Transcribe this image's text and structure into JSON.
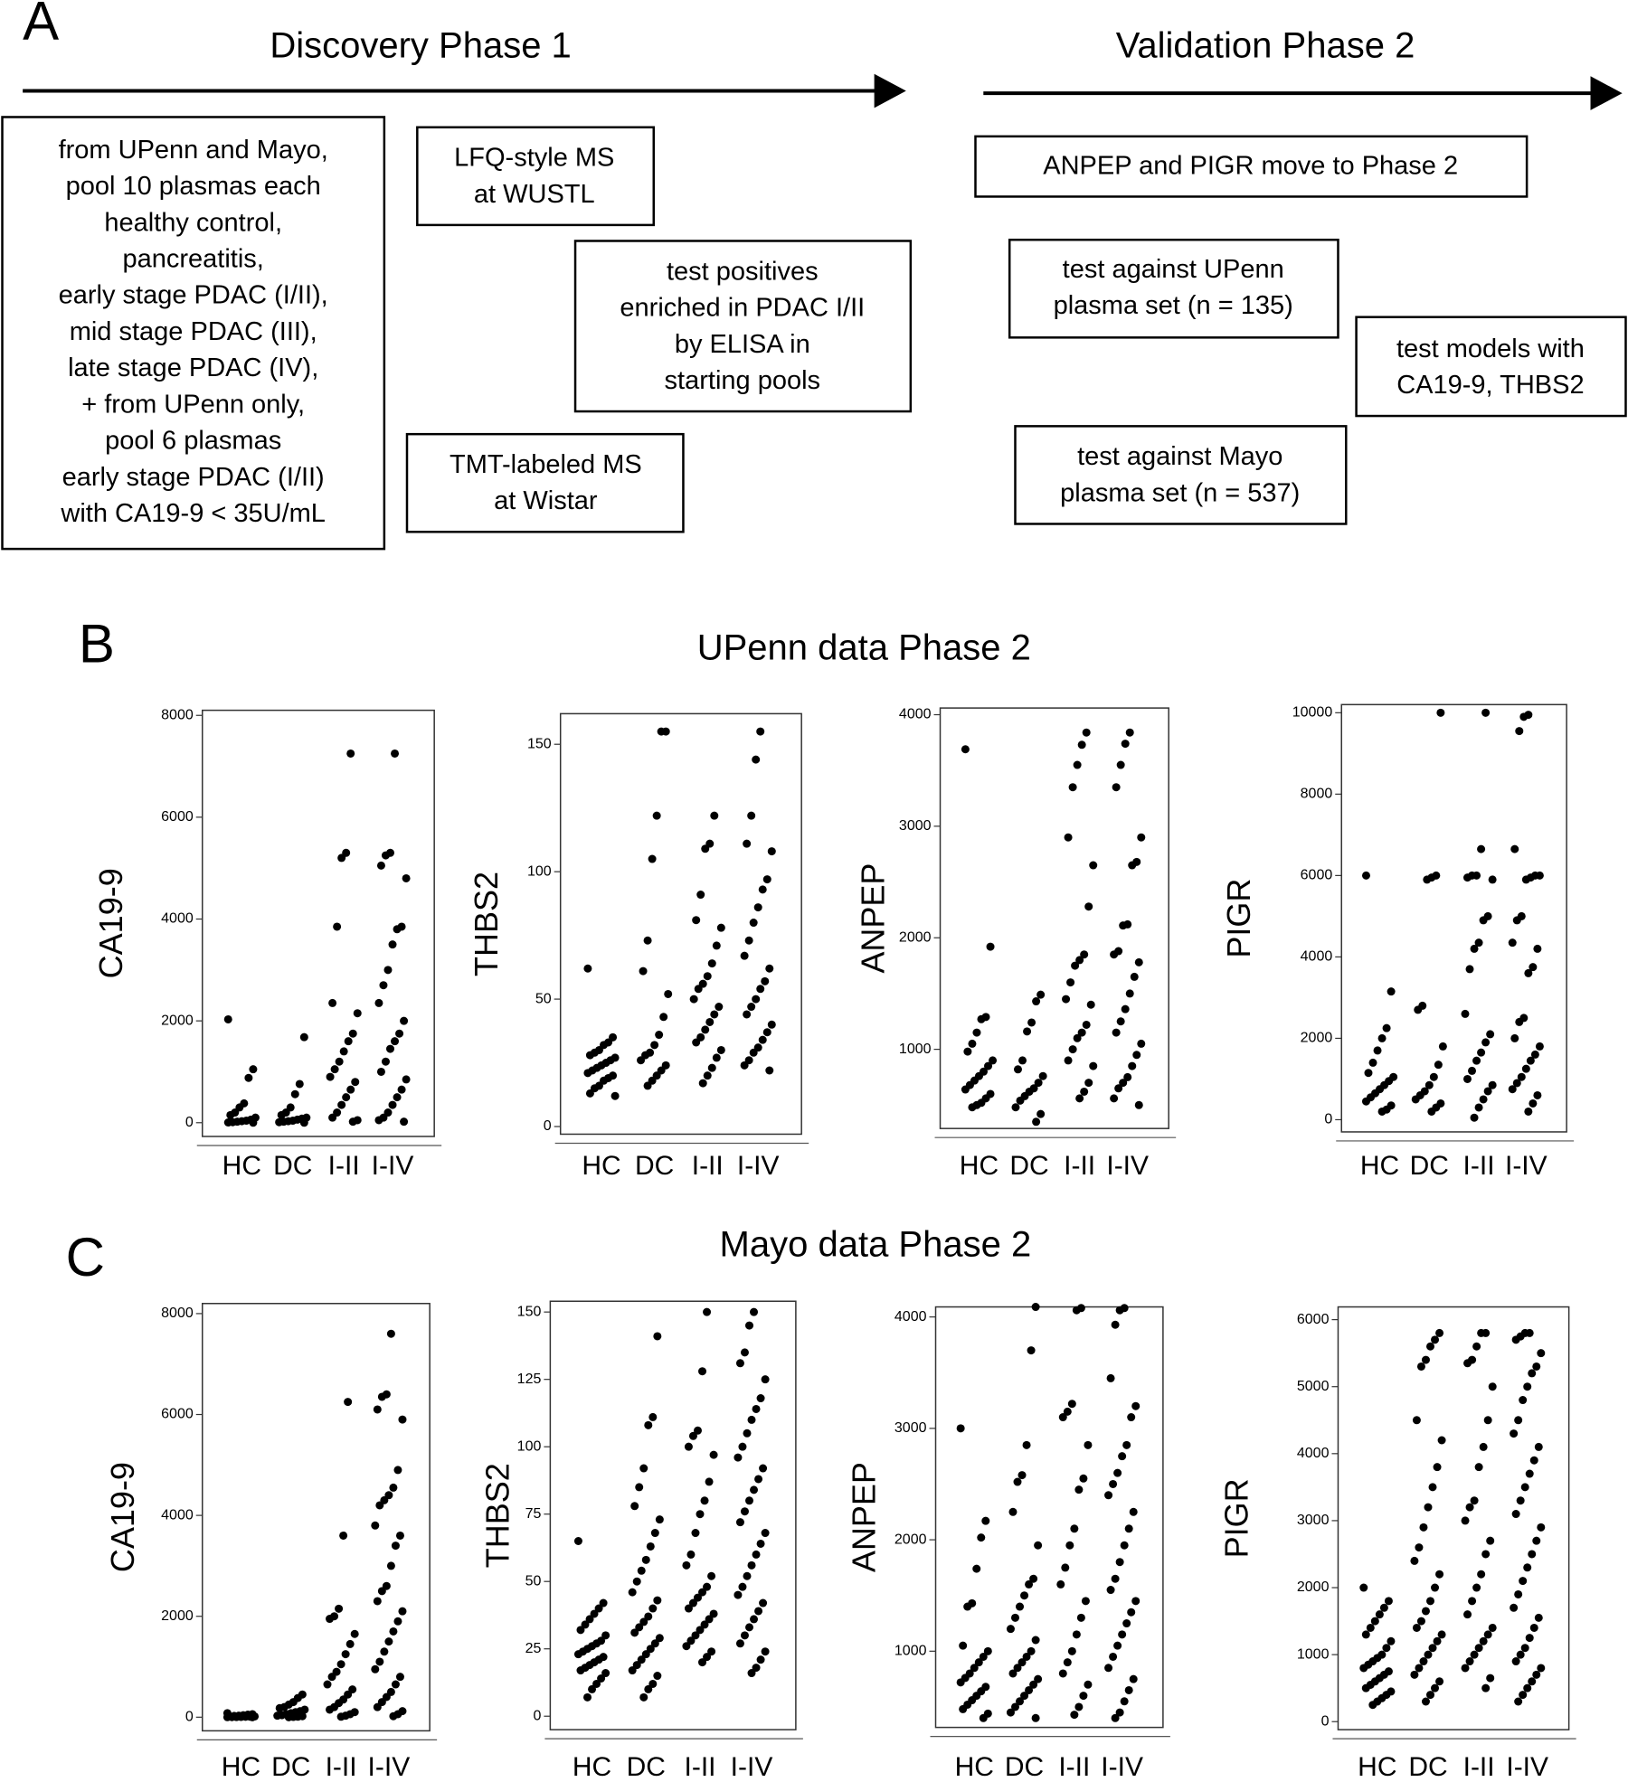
{
  "panel_a": {
    "label": "A",
    "phase1_title": "Discovery Phase 1",
    "phase2_title": "Validation Phase 2",
    "boxes": [
      {
        "lines": [
          "from UPenn and Mayo,",
          "pool 10 plasmas each",
          "healthy control,",
          "pancreatitis,",
          "early stage PDAC (I/II),",
          "mid stage PDAC (III),",
          "late stage PDAC (IV),",
          "+ from UPenn only,",
          "pool 6 plasmas",
          "early stage PDAC (I/II)",
          "with CA19-9 < 35U/mL"
        ]
      },
      {
        "lines": [
          "LFQ-style MS",
          "at WUSTL"
        ]
      },
      {
        "lines": [
          "test positives",
          "enriched in PDAC I/II",
          "by ELISA in",
          "starting pools"
        ]
      },
      {
        "lines": [
          "TMT-labeled MS",
          "at Wistar"
        ]
      },
      {
        "lines": [
          "ANPEP and PIGR move to Phase 2"
        ]
      },
      {
        "lines": [
          "test against UPenn",
          "plasma set (n = 135)"
        ]
      },
      {
        "lines": [
          "test models with",
          "CA19-9, THBS2"
        ]
      },
      {
        "lines": [
          "test against Mayo",
          "plasma set (n = 537)"
        ]
      }
    ]
  },
  "panel_b": {
    "label": "B",
    "title": "UPenn data Phase 2"
  },
  "panel_c": {
    "label": "C",
    "title": "Mayo data Phase 2"
  },
  "chart_data": [
    {
      "type": "strip",
      "ylabel": "CA19-9",
      "categories": [
        "HC",
        "DC",
        "I-II",
        "I-IV"
      ],
      "color": "#000000",
      "ylim": [
        -270,
        8100
      ],
      "yticks": [
        0,
        2000,
        4000,
        6000,
        8000
      ],
      "values": [
        [
          2030,
          1050,
          880,
          380,
          300,
          200,
          150,
          100,
          60,
          40,
          30,
          20,
          10,
          5,
          0
        ],
        [
          1680,
          760,
          560,
          300,
          200,
          150,
          100,
          80,
          60,
          40,
          30,
          20,
          10,
          0
        ],
        [
          7250,
          5300,
          5200,
          3850,
          2350,
          2150,
          1750,
          1600,
          1400,
          1200,
          1050,
          900,
          800,
          650,
          500,
          350,
          200,
          100,
          50,
          20
        ],
        [
          7250,
          5300,
          5250,
          5050,
          4800,
          3850,
          3800,
          3500,
          3000,
          2700,
          2350,
          2000,
          1750,
          1600,
          1450,
          1200,
          1000,
          850,
          650,
          500,
          350,
          200,
          100,
          50,
          20
        ]
      ]
    },
    {
      "type": "strip",
      "ylabel": "THBS2",
      "categories": [
        "HC",
        "DC",
        "I-II",
        "I-IV"
      ],
      "color": "#000000",
      "ylim": [
        -3,
        162
      ],
      "yticks": [
        0,
        50,
        100,
        150
      ],
      "values": [
        [
          62,
          35,
          33,
          32,
          30,
          29,
          28,
          27,
          26,
          25,
          24,
          23,
          22,
          21,
          20,
          19,
          18,
          16,
          15,
          13,
          12
        ],
        [
          155,
          155,
          122,
          105,
          73,
          61,
          52,
          43,
          36,
          32,
          29,
          28,
          26,
          24,
          22,
          20,
          18,
          16
        ],
        [
          122,
          111,
          109,
          91,
          81,
          78,
          71,
          64,
          59,
          56,
          54,
          50,
          47,
          44,
          41,
          38,
          35,
          33,
          30,
          27,
          23,
          20,
          17
        ],
        [
          155,
          144,
          122,
          111,
          108,
          97,
          93,
          86,
          80,
          73,
          67,
          62,
          57,
          54,
          50,
          47,
          44,
          40,
          37,
          34,
          31,
          29,
          26,
          24,
          22
        ]
      ]
    },
    {
      "type": "strip",
      "ylabel": "ANPEP",
      "categories": [
        "HC",
        "DC",
        "I-II",
        "I-IV"
      ],
      "color": "#000000",
      "ylim": [
        290,
        4060
      ],
      "yticks": [
        1000,
        2000,
        3000,
        4000
      ],
      "values": [
        [
          3690,
          1920,
          1290,
          1270,
          1150,
          1050,
          980,
          900,
          850,
          800,
          760,
          720,
          680,
          640,
          600,
          560,
          520,
          500,
          480
        ],
        [
          1490,
          1430,
          1240,
          1160,
          900,
          820,
          760,
          700,
          650,
          620,
          580,
          540,
          480,
          420,
          350
        ],
        [
          3840,
          3730,
          3550,
          3350,
          2900,
          2650,
          2280,
          1850,
          1800,
          1750,
          1600,
          1450,
          1400,
          1220,
          1150,
          1100,
          1000,
          900,
          850,
          700,
          620,
          560
        ],
        [
          3840,
          3740,
          3550,
          3350,
          2900,
          2680,
          2650,
          2120,
          2110,
          1880,
          1850,
          1780,
          1650,
          1500,
          1360,
          1250,
          1150,
          1050,
          950,
          850,
          750,
          700,
          650,
          560,
          500
        ]
      ]
    },
    {
      "type": "strip",
      "ylabel": "PIGR",
      "categories": [
        "HC",
        "DC",
        "I-II",
        "I-IV"
      ],
      "color": "#000000",
      "ylim": [
        -300,
        10200
      ],
      "yticks": [
        0,
        2000,
        4000,
        6000,
        8000,
        10000
      ],
      "values": [
        [
          6000,
          3150,
          2250,
          2000,
          1700,
          1400,
          1150,
          1050,
          950,
          850,
          750,
          650,
          550,
          450,
          350,
          250,
          200
        ],
        [
          10000,
          6000,
          5950,
          5900,
          2800,
          2700,
          1800,
          1350,
          1050,
          850,
          700,
          600,
          500,
          400,
          300,
          200
        ],
        [
          10000,
          6650,
          6000,
          6000,
          5950,
          5900,
          5000,
          4900,
          4350,
          4200,
          3700,
          2600,
          2100,
          1900,
          1650,
          1450,
          1200,
          1000,
          850,
          700,
          500,
          300,
          50
        ],
        [
          9950,
          9900,
          9550,
          6650,
          6000,
          6000,
          5950,
          5900,
          5000,
          4900,
          4350,
          4200,
          3750,
          3600,
          2500,
          2400,
          2000,
          1800,
          1600,
          1450,
          1250,
          1050,
          900,
          750,
          600,
          400,
          200
        ]
      ]
    },
    {
      "type": "strip",
      "ylabel": "CA19-9",
      "categories": [
        "HC",
        "DC",
        "I-II",
        "I-IV"
      ],
      "color": "#000000",
      "ylim": [
        -270,
        8200
      ],
      "yticks": [
        0,
        2000,
        4000,
        6000,
        8000
      ],
      "values": [
        [
          80,
          60,
          50,
          40,
          30,
          25,
          20,
          15,
          10,
          8,
          5,
          3,
          2,
          1,
          0
        ],
        [
          450,
          380,
          300,
          250,
          200,
          180,
          150,
          120,
          100,
          80,
          60,
          40,
          30,
          20,
          10,
          5,
          0
        ],
        [
          6250,
          3600,
          2150,
          2000,
          1950,
          1650,
          1450,
          1250,
          1050,
          900,
          800,
          650,
          550,
          450,
          350,
          280,
          200,
          150,
          100,
          60,
          30,
          10
        ],
        [
          7600,
          6400,
          6350,
          6100,
          5900,
          4900,
          4550,
          4400,
          4300,
          4200,
          3800,
          3600,
          3400,
          3000,
          2600,
          2500,
          2300,
          2100,
          1900,
          1700,
          1500,
          1300,
          1100,
          950,
          800,
          650,
          500,
          400,
          300,
          200,
          120,
          60,
          20
        ]
      ]
    },
    {
      "type": "strip",
      "ylabel": "THBS2",
      "categories": [
        "HC",
        "DC",
        "I-II",
        "I-IV"
      ],
      "color": "#000000",
      "ylim": [
        -5,
        154
      ],
      "yticks": [
        0,
        25,
        50,
        75,
        100,
        125,
        150
      ],
      "values": [
        [
          65,
          42,
          40,
          38,
          36,
          34,
          32,
          30,
          28,
          27,
          26,
          25,
          24,
          23,
          22,
          21,
          20,
          19,
          18,
          17,
          16,
          14,
          12,
          10,
          7
        ],
        [
          141,
          111,
          108,
          92,
          85,
          78,
          73,
          68,
          63,
          58,
          54,
          50,
          46,
          43,
          40,
          37,
          35,
          33,
          31,
          29,
          27,
          25,
          23,
          21,
          19,
          17,
          15,
          12,
          10,
          7
        ],
        [
          150,
          128,
          106,
          104,
          100,
          97,
          87,
          80,
          75,
          68,
          60,
          56,
          52,
          48,
          46,
          44,
          42,
          40,
          38,
          36,
          34,
          32,
          30,
          28,
          26,
          24,
          22,
          20
        ],
        [
          150,
          145,
          135,
          131,
          125,
          118,
          114,
          110,
          105,
          100,
          96,
          92,
          88,
          84,
          80,
          76,
          72,
          68,
          64,
          60,
          56,
          52,
          48,
          45,
          42,
          39,
          36,
          33,
          30,
          27,
          24,
          21,
          18,
          16
        ]
      ]
    },
    {
      "type": "strip",
      "ylabel": "ANPEP",
      "categories": [
        "HC",
        "DC",
        "I-II",
        "I-IV"
      ],
      "color": "#000000",
      "ylim": [
        316,
        4090
      ],
      "yticks": [
        1000,
        2000,
        3000,
        4000
      ],
      "values": [
        [
          3000,
          2170,
          2020,
          1740,
          1430,
          1400,
          1050,
          1000,
          950,
          900,
          850,
          800,
          760,
          720,
          680,
          640,
          600,
          560,
          520,
          480,
          440,
          400
        ],
        [
          4090,
          3700,
          2850,
          2580,
          2520,
          2250,
          1950,
          1650,
          1600,
          1500,
          1400,
          1300,
          1200,
          1100,
          1000,
          950,
          900,
          850,
          800,
          750,
          700,
          650,
          600,
          550,
          500,
          450,
          400
        ],
        [
          4080,
          4060,
          3220,
          3150,
          3100,
          2850,
          2550,
          2450,
          2100,
          1950,
          1750,
          1600,
          1450,
          1300,
          1150,
          1000,
          900,
          800,
          700,
          600,
          500,
          430
        ],
        [
          4080,
          4060,
          3930,
          3450,
          3200,
          3100,
          2850,
          2750,
          2600,
          2500,
          2400,
          2250,
          2100,
          1950,
          1800,
          1650,
          1550,
          1450,
          1350,
          1250,
          1150,
          1050,
          950,
          850,
          750,
          650,
          550,
          450,
          400
        ]
      ]
    },
    {
      "type": "strip",
      "ylabel": "PIGR",
      "categories": [
        "HC",
        "DC",
        "I-II",
        "I-IV"
      ],
      "color": "#000000",
      "ylim": [
        -120,
        6190
      ],
      "yticks": [
        0,
        1000,
        2000,
        3000,
        4000,
        5000,
        6000
      ],
      "values": [
        [
          2000,
          1800,
          1700,
          1600,
          1500,
          1400,
          1300,
          1200,
          1100,
          1000,
          950,
          900,
          850,
          800,
          750,
          700,
          650,
          600,
          550,
          500,
          450,
          400,
          350,
          300,
          250
        ],
        [
          5800,
          5700,
          5600,
          5400,
          5300,
          4500,
          4200,
          3800,
          3500,
          3200,
          2900,
          2600,
          2400,
          2200,
          2000,
          1800,
          1650,
          1500,
          1400,
          1300,
          1200,
          1100,
          1000,
          900,
          800,
          700,
          600,
          500,
          400,
          300
        ],
        [
          5800,
          5800,
          5600,
          5400,
          5350,
          5000,
          4500,
          4100,
          3800,
          3300,
          3200,
          3000,
          2700,
          2500,
          2200,
          2000,
          1800,
          1600,
          1400,
          1300,
          1200,
          1100,
          1000,
          900,
          800,
          650,
          500
        ],
        [
          5800,
          5800,
          5750,
          5700,
          5500,
          5300,
          5200,
          5000,
          4800,
          4500,
          4300,
          4100,
          3900,
          3700,
          3500,
          3300,
          3100,
          2900,
          2700,
          2500,
          2300,
          2100,
          1900,
          1700,
          1550,
          1400,
          1250,
          1100,
          1000,
          900,
          800,
          700,
          600,
          500,
          400,
          300
        ]
      ]
    }
  ]
}
